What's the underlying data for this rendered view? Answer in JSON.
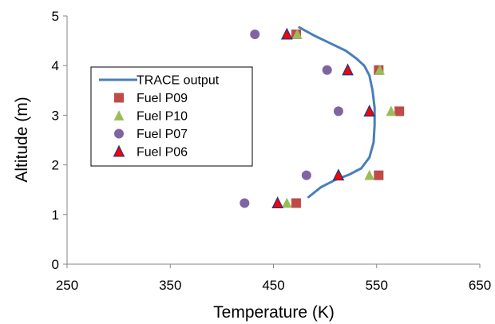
{
  "chart_data": {
    "type": "scatter",
    "title": "",
    "xlabel": "Temperature (K)",
    "ylabel": "Altitude (m)",
    "xlim": [
      250,
      650
    ],
    "ylim": [
      0,
      5
    ],
    "xticks": [
      250,
      350,
      450,
      550,
      650
    ],
    "yticks": [
      0,
      1,
      2,
      3,
      4,
      5
    ],
    "grid": false,
    "legend_position": "left",
    "series": [
      {
        "name": "TRACE output",
        "kind": "line",
        "color": "#4a7ebb",
        "points": [
          [
            475,
            4.77
          ],
          [
            490,
            4.6
          ],
          [
            505,
            4.45
          ],
          [
            520,
            4.3
          ],
          [
            530,
            4.15
          ],
          [
            538,
            4.0
          ],
          [
            543,
            3.8
          ],
          [
            546,
            3.5
          ],
          [
            548,
            3.15
          ],
          [
            548,
            2.8
          ],
          [
            547,
            2.45
          ],
          [
            543,
            2.15
          ],
          [
            535,
            1.93
          ],
          [
            523,
            1.8
          ],
          [
            510,
            1.7
          ],
          [
            496,
            1.55
          ],
          [
            484,
            1.35
          ]
        ]
      },
      {
        "name": "Fuel P09",
        "kind": "square",
        "color": "#be4b48",
        "points": [
          [
            472,
            4.63
          ],
          [
            552,
            3.91
          ],
          [
            572,
            3.08
          ],
          [
            552,
            1.79
          ],
          [
            472,
            1.23
          ]
        ]
      },
      {
        "name": "Fuel P10",
        "kind": "triangle",
        "color": "#9bbb59",
        "points": [
          [
            473,
            4.63
          ],
          [
            553,
            3.91
          ],
          [
            564,
            3.08
          ],
          [
            543,
            1.79
          ],
          [
            463,
            1.23
          ]
        ]
      },
      {
        "name": "Fuel P07",
        "kind": "circle",
        "color": "#8064a2",
        "points": [
          [
            432,
            4.63
          ],
          [
            502,
            3.91
          ],
          [
            513,
            3.08
          ],
          [
            482,
            1.79
          ],
          [
            422,
            1.23
          ]
        ]
      },
      {
        "name": "Fuel P06",
        "kind": "triangle-outline",
        "color": "#ff0000",
        "edge_color": "#1f3a8a",
        "points": [
          [
            463,
            4.63
          ],
          [
            522,
            3.91
          ],
          [
            543,
            3.08
          ],
          [
            513,
            1.79
          ],
          [
            454,
            1.23
          ]
        ]
      }
    ]
  }
}
